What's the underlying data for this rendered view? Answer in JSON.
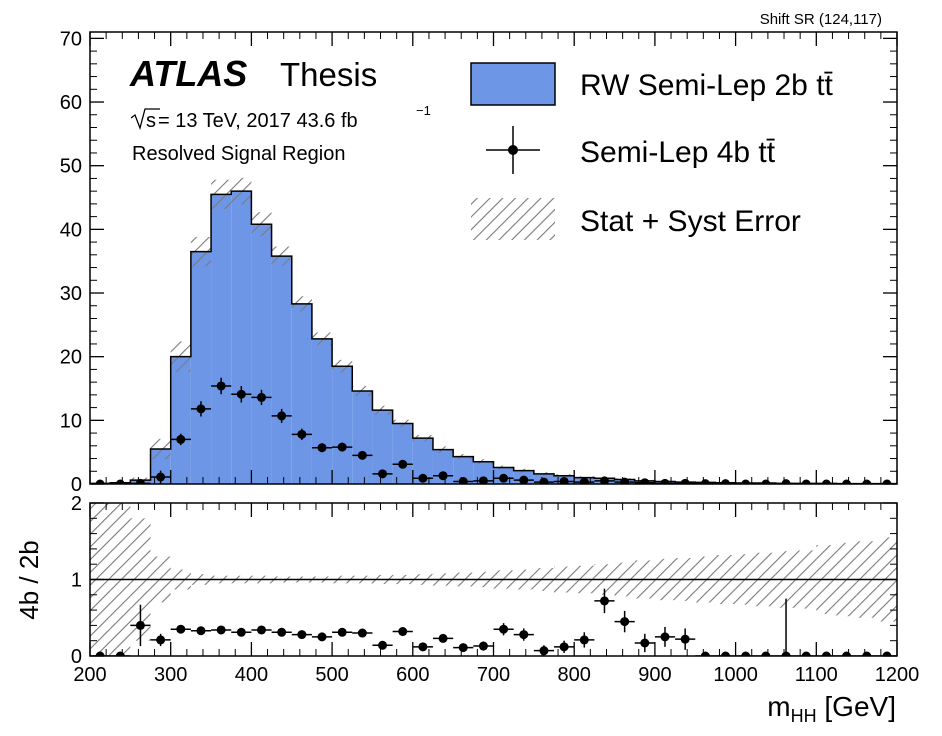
{
  "corner_label": "Shift SR (124,117)",
  "atlas": {
    "brand": "ATLAS",
    "tag": "Thesis"
  },
  "energy_label": {
    "sqrt": "s",
    "rest": " = 13 TeV, 2017 43.6 fb",
    "sup": "−1"
  },
  "region_label": "Resolved Signal Region",
  "legend": {
    "mc": "RW Semi-Lep 2b tt̄",
    "data": "Semi-Lep 4b tt̄",
    "err": "Stat + Syst Error"
  },
  "colors": {
    "mc_fill": "#6d97e6",
    "line": "#000000",
    "hatch": "#7a7a7a"
  },
  "chart_data": [
    {
      "type": "bar",
      "panel": "main",
      "bin_edges": [
        200,
        225,
        250,
        275,
        300,
        325,
        350,
        375,
        400,
        425,
        450,
        475,
        500,
        525,
        550,
        575,
        600,
        625,
        650,
        675,
        700,
        725,
        750,
        775,
        800,
        825,
        850,
        875,
        900,
        925,
        950,
        975,
        1000,
        1025,
        1050,
        1075,
        1100,
        1125,
        1150,
        1175,
        1200
      ],
      "series": [
        {
          "name": "RW Semi-Lep 2b tt̄",
          "style": "filled-histogram",
          "values": [
            0.1,
            0.2,
            0.6,
            5.5,
            20,
            36.5,
            45.5,
            46,
            40.8,
            35.8,
            28.3,
            22.8,
            18.5,
            14.6,
            11.6,
            9.5,
            7.2,
            5.4,
            4.3,
            3.5,
            2.6,
            2.1,
            1.6,
            1.3,
            1.0,
            0.9,
            0.7,
            0.5,
            0.4,
            0.3,
            0.25,
            0.2,
            0.15,
            0.15,
            0.1,
            0.1,
            0.1,
            0.05,
            0.05,
            0.05
          ],
          "err": [
            0.1,
            0.2,
            0.4,
            1.6,
            2.4,
            2.3,
            2.3,
            2.1,
            1.9,
            1.5,
            1.2,
            1.0,
            1.0,
            0.8,
            0.7,
            0.6,
            0.5,
            0.5,
            0.4,
            0.4,
            0.3,
            0.3,
            0.25,
            0.25,
            0.2,
            0.2,
            0.2,
            0.15,
            0.15,
            0.1,
            0.1,
            0.1,
            0.1,
            0.1,
            0.1,
            0.1,
            0.1,
            0.05,
            0.05,
            0.05
          ]
        },
        {
          "name": "Semi-Lep 4b tt̄",
          "style": "points",
          "values": [
            0,
            0,
            0.1,
            1.1,
            7,
            11.8,
            15.4,
            14.1,
            13.6,
            10.7,
            7.8,
            5.7,
            5.8,
            4.5,
            1.6,
            3.1,
            0.9,
            1.3,
            0.4,
            0.5,
            0.9,
            0.6,
            0.3,
            0.4,
            0.3,
            0.5,
            0.3,
            0.2,
            0.1,
            0.1,
            0.05,
            0.05,
            0,
            0,
            0.05,
            0,
            0,
            0,
            0,
            0
          ],
          "err": [
            0,
            0,
            0.3,
            1.0,
            0.9,
            1.2,
            1.3,
            1.3,
            1.2,
            1.1,
            0.9,
            0.7,
            0.7,
            0.6,
            0.4,
            0.5,
            0.3,
            0.4,
            0.2,
            0.2,
            0.3,
            0.2,
            0.2,
            0.2,
            0.2,
            0.2,
            0.2,
            0.1,
            0.1,
            0.1,
            0.1,
            0.1,
            0,
            0,
            0.1,
            0,
            0,
            0,
            0,
            0
          ]
        }
      ],
      "ylim": [
        0,
        71
      ],
      "y_ticks": [
        0,
        10,
        20,
        30,
        40,
        50,
        60,
        70
      ]
    },
    {
      "type": "scatter",
      "panel": "ratio",
      "ylabel": "4b / 2b",
      "xlabel": "m",
      "xlabel_sub": "HH",
      "xlabel_unit": " [GeV]",
      "xlim": [
        200,
        1200
      ],
      "ylim": [
        0,
        2
      ],
      "x_ticks": [
        200,
        300,
        400,
        500,
        600,
        700,
        800,
        900,
        1000,
        1100,
        1200
      ],
      "y_ticks": [
        0,
        1,
        2
      ],
      "reference_line": 1,
      "ratio": [
        0,
        0,
        0.4,
        0.21,
        0.35,
        0.33,
        0.34,
        0.31,
        0.34,
        0.31,
        0.28,
        0.25,
        0.31,
        0.3,
        0.14,
        0.32,
        0.12,
        0.23,
        0.11,
        0.13,
        0.35,
        0.28,
        0.07,
        0.12,
        0.21,
        0.72,
        0.45,
        0.17,
        0.25,
        0.22,
        0,
        0,
        0,
        0,
        0,
        0,
        0,
        0,
        0,
        0
      ],
      "ratio_err": [
        0,
        0,
        0.27,
        0.08,
        0.03,
        0.03,
        0.03,
        0.03,
        0.03,
        0.03,
        0.04,
        0.03,
        0.04,
        0.04,
        0.04,
        0.04,
        0.04,
        0.05,
        0.05,
        0.06,
        0.08,
        0.08,
        0.07,
        0.08,
        0.1,
        0.16,
        0.14,
        0.12,
        0.13,
        0.14,
        0,
        0,
        0,
        0,
        0.75,
        0,
        0,
        0,
        0,
        0
      ],
      "band_err": [
        1.0,
        1.0,
        0.8,
        0.3,
        0.13,
        0.07,
        0.05,
        0.05,
        0.05,
        0.04,
        0.04,
        0.04,
        0.05,
        0.05,
        0.06,
        0.06,
        0.07,
        0.08,
        0.09,
        0.1,
        0.12,
        0.13,
        0.15,
        0.17,
        0.18,
        0.2,
        0.22,
        0.25,
        0.27,
        0.28,
        0.3,
        0.32,
        0.33,
        0.35,
        0.37,
        0.38,
        0.45,
        0.48,
        0.5,
        0.55
      ]
    }
  ]
}
